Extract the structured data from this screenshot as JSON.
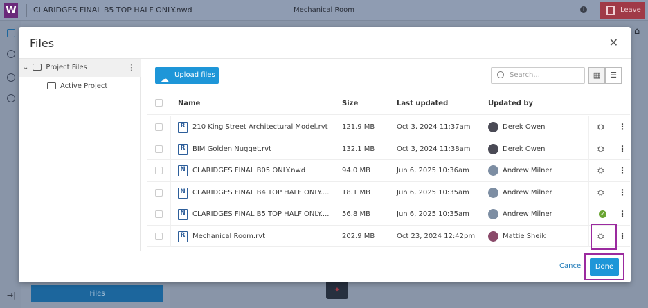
{
  "app": {
    "logo": "W",
    "document_title": "CLARIDGES FINAL B5 TOP HALF ONLY.nwd",
    "view_title": "Mechanical Room",
    "leave_label": "Leave",
    "files_button": "Files"
  },
  "modal": {
    "title": "Files",
    "tree": [
      {
        "label": "Project Files",
        "expanded": true,
        "selected": true
      },
      {
        "label": "Active Project"
      }
    ],
    "upload_label": "Upload files",
    "search_placeholder": "Search...",
    "columns": {
      "name": "Name",
      "size": "Size",
      "last_updated": "Last updated",
      "updated_by": "Updated by"
    },
    "rows": [
      {
        "name": "210 King Street Architectural Model.rvt",
        "type": "R",
        "size": "121.9 MB",
        "updated": "Oct 3, 2024 11:37am",
        "by": "Derek Owen",
        "status": "model-icon"
      },
      {
        "name": "BIM Golden Nugget.rvt",
        "type": "R",
        "size": "132.1 MB",
        "updated": "Oct 3, 2024 11:38am",
        "by": "Derek Owen",
        "status": "model-icon"
      },
      {
        "name": "CLARIDGES FINAL B05 ONLY.nwd",
        "type": "N",
        "size": "94.0 MB",
        "updated": "Jun 6, 2025 10:36am",
        "by": "Andrew Milner",
        "status": "model-icon"
      },
      {
        "name": "CLARIDGES FINAL B4 TOP HALF ONLY....",
        "type": "N",
        "size": "18.1 MB",
        "updated": "Jun 6, 2025 10:35am",
        "by": "Andrew Milner",
        "status": "model-icon"
      },
      {
        "name": "CLARIDGES FINAL B5 TOP HALF ONLY....",
        "type": "N",
        "size": "56.8 MB",
        "updated": "Jun 6, 2025 10:35am",
        "by": "Andrew Milner",
        "status": "check-icon"
      },
      {
        "name": "Mechanical Room.rvt",
        "type": "R",
        "size": "202.9 MB",
        "updated": "Oct 23, 2024 12:42pm",
        "by": "Mattie Sheik",
        "status": "model-icon"
      }
    ],
    "cancel_label": "Cancel",
    "done_label": "Done"
  },
  "colors": {
    "accent": "#1e96d8",
    "highlight": "#9b2a9f",
    "leave": "#a03a47"
  }
}
